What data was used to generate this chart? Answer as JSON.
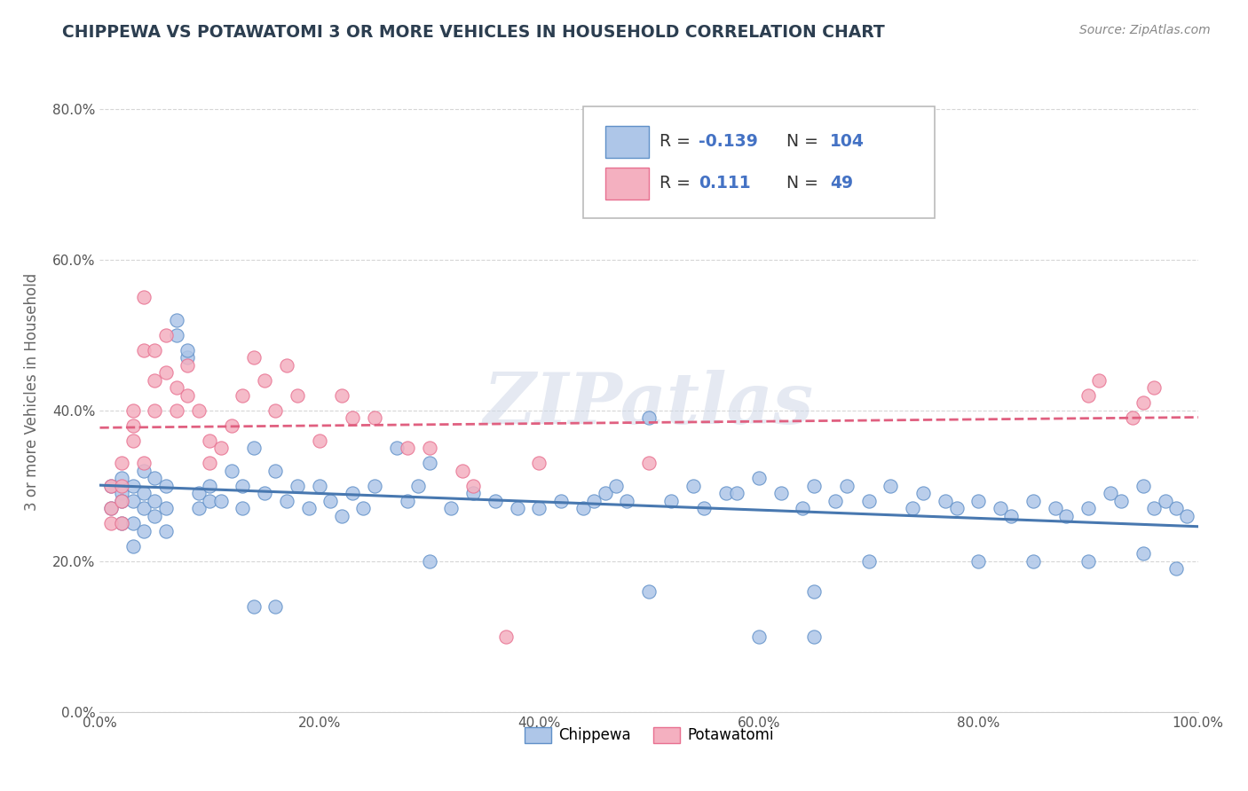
{
  "title": "CHIPPEWA VS POTAWATOMI 3 OR MORE VEHICLES IN HOUSEHOLD CORRELATION CHART",
  "source_text": "Source: ZipAtlas.com",
  "ylabel": "3 or more Vehicles in Household",
  "watermark": "ZIPatlas",
  "xlim": [
    0,
    1.0
  ],
  "ylim": [
    0.0,
    0.85
  ],
  "xticks": [
    0.0,
    0.2,
    0.4,
    0.6,
    0.8,
    1.0
  ],
  "yticks": [
    0.0,
    0.2,
    0.4,
    0.6,
    0.8
  ],
  "xticklabels": [
    "0.0%",
    "20.0%",
    "40.0%",
    "60.0%",
    "80.0%",
    "100.0%"
  ],
  "yticklabels": [
    "0.0%",
    "20.0%",
    "40.0%",
    "60.0%",
    "80.0%"
  ],
  "chippewa_color": "#aec6e8",
  "potawatomi_color": "#f4b0c0",
  "chippewa_line_color": "#4878b0",
  "potawatomi_line_color": "#e06080",
  "chippewa_edge_color": "#6090c8",
  "potawatomi_edge_color": "#e87090",
  "r_value_color": "#4472c4",
  "R_chippewa": -0.139,
  "N_chippewa": 104,
  "R_potawatomi": 0.111,
  "N_potawatomi": 49,
  "background_color": "#ffffff",
  "grid_color": "#cccccc",
  "title_color": "#2c3e50",
  "axis_label_color": "#666666",
  "chippewa_scatter_x": [
    0.01,
    0.01,
    0.02,
    0.02,
    0.02,
    0.02,
    0.03,
    0.03,
    0.03,
    0.03,
    0.04,
    0.04,
    0.04,
    0.04,
    0.05,
    0.05,
    0.05,
    0.06,
    0.06,
    0.06,
    0.07,
    0.07,
    0.08,
    0.08,
    0.09,
    0.09,
    0.1,
    0.1,
    0.11,
    0.12,
    0.13,
    0.13,
    0.14,
    0.15,
    0.16,
    0.17,
    0.18,
    0.19,
    0.2,
    0.21,
    0.22,
    0.23,
    0.24,
    0.25,
    0.27,
    0.28,
    0.29,
    0.3,
    0.32,
    0.34,
    0.36,
    0.38,
    0.4,
    0.42,
    0.44,
    0.46,
    0.47,
    0.48,
    0.5,
    0.52,
    0.54,
    0.55,
    0.57,
    0.58,
    0.6,
    0.62,
    0.64,
    0.65,
    0.67,
    0.68,
    0.7,
    0.72,
    0.74,
    0.75,
    0.77,
    0.78,
    0.8,
    0.82,
    0.83,
    0.85,
    0.87,
    0.88,
    0.9,
    0.92,
    0.93,
    0.95,
    0.96,
    0.97,
    0.98,
    0.99,
    0.14,
    0.16,
    0.3,
    0.45,
    0.5,
    0.65,
    0.7,
    0.8,
    0.85,
    0.9,
    0.95,
    0.98,
    0.6,
    0.65
  ],
  "chippewa_scatter_y": [
    0.3,
    0.27,
    0.29,
    0.31,
    0.28,
    0.25,
    0.3,
    0.28,
    0.25,
    0.22,
    0.29,
    0.27,
    0.32,
    0.24,
    0.28,
    0.31,
    0.26,
    0.3,
    0.27,
    0.24,
    0.52,
    0.5,
    0.47,
    0.48,
    0.29,
    0.27,
    0.3,
    0.28,
    0.28,
    0.32,
    0.3,
    0.27,
    0.35,
    0.29,
    0.32,
    0.28,
    0.3,
    0.27,
    0.3,
    0.28,
    0.26,
    0.29,
    0.27,
    0.3,
    0.35,
    0.28,
    0.3,
    0.33,
    0.27,
    0.29,
    0.28,
    0.27,
    0.27,
    0.28,
    0.27,
    0.29,
    0.3,
    0.28,
    0.39,
    0.28,
    0.3,
    0.27,
    0.29,
    0.29,
    0.31,
    0.29,
    0.27,
    0.3,
    0.28,
    0.3,
    0.28,
    0.3,
    0.27,
    0.29,
    0.28,
    0.27,
    0.28,
    0.27,
    0.26,
    0.28,
    0.27,
    0.26,
    0.27,
    0.29,
    0.28,
    0.3,
    0.27,
    0.28,
    0.27,
    0.26,
    0.14,
    0.14,
    0.2,
    0.28,
    0.16,
    0.16,
    0.2,
    0.2,
    0.2,
    0.2,
    0.21,
    0.19,
    0.1,
    0.1
  ],
  "potawatomi_scatter_x": [
    0.01,
    0.01,
    0.01,
    0.02,
    0.02,
    0.02,
    0.02,
    0.03,
    0.03,
    0.03,
    0.04,
    0.04,
    0.04,
    0.05,
    0.05,
    0.05,
    0.06,
    0.06,
    0.07,
    0.07,
    0.08,
    0.08,
    0.09,
    0.1,
    0.1,
    0.11,
    0.12,
    0.13,
    0.14,
    0.15,
    0.16,
    0.17,
    0.18,
    0.2,
    0.22,
    0.23,
    0.25,
    0.28,
    0.3,
    0.33,
    0.34,
    0.37,
    0.4,
    0.5,
    0.9,
    0.91,
    0.94,
    0.95,
    0.96
  ],
  "potawatomi_scatter_y": [
    0.3,
    0.27,
    0.25,
    0.33,
    0.3,
    0.28,
    0.25,
    0.4,
    0.38,
    0.36,
    0.55,
    0.48,
    0.33,
    0.48,
    0.44,
    0.4,
    0.5,
    0.45,
    0.43,
    0.4,
    0.46,
    0.42,
    0.4,
    0.36,
    0.33,
    0.35,
    0.38,
    0.42,
    0.47,
    0.44,
    0.4,
    0.46,
    0.42,
    0.36,
    0.42,
    0.39,
    0.39,
    0.35,
    0.35,
    0.32,
    0.3,
    0.1,
    0.33,
    0.33,
    0.42,
    0.44,
    0.39,
    0.41,
    0.43
  ]
}
